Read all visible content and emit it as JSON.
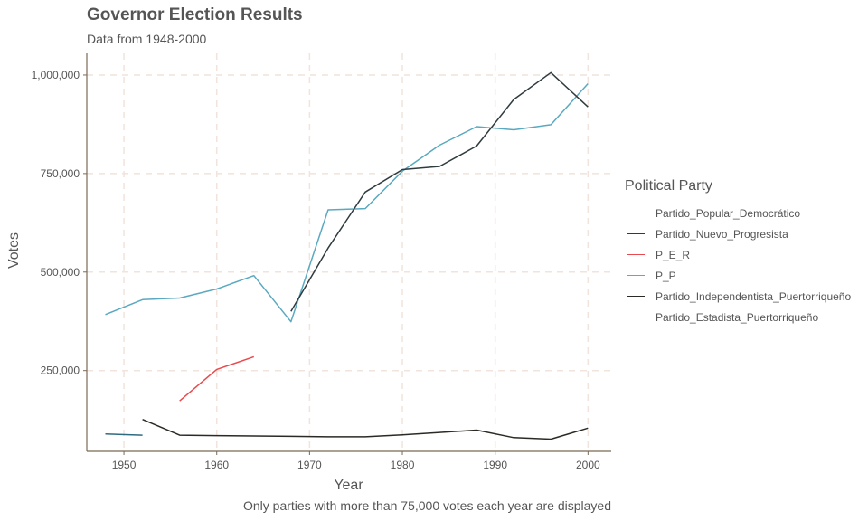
{
  "chart_data": {
    "type": "line",
    "title": "Governor Election Results",
    "subtitle": "Data from 1948-2000",
    "xlabel": "Year",
    "ylabel": "Votes",
    "caption": "Only parties with more than 75,000 votes each year are displayed",
    "xlim": [
      1946,
      2002.5
    ],
    "ylim": [
      45000,
      1055000
    ],
    "x_ticks": [
      1950,
      1960,
      1970,
      1980,
      1990,
      2000
    ],
    "x_tick_labels": [
      "1950",
      "1960",
      "1970",
      "1980",
      "1990",
      "2000"
    ],
    "y_ticks": [
      250000,
      500000,
      750000,
      1000000
    ],
    "y_tick_labels": [
      "250,000",
      "500,000",
      "750,000",
      "1,000,000"
    ],
    "grid": true,
    "legend_title": "Political Party",
    "legend_position": "right",
    "series": [
      {
        "name": "Partido_Popular_Democrático",
        "color": "#5aa9c0",
        "x": [
          1948,
          1952,
          1956,
          1960,
          1964,
          1968,
          1972,
          1976,
          1980,
          1984,
          1988,
          1992,
          1996,
          2000
        ],
        "y": [
          392000,
          430000,
          434000,
          457000,
          491000,
          374000,
          658000,
          661000,
          756000,
          822000,
          869000,
          861000,
          874000,
          978000
        ]
      },
      {
        "name": "Partido_Nuevo_Progresista",
        "color": "#2f3b3e",
        "x": [
          1968,
          1972,
          1976,
          1980,
          1984,
          1988,
          1992,
          1996,
          2000
        ],
        "y": [
          400000,
          561000,
          703000,
          760000,
          768000,
          820000,
          938000,
          1006000,
          919000
        ]
      },
      {
        "name": "P_E_R",
        "color": "#e84a4f",
        "x": [
          1956,
          1960,
          1964
        ],
        "y": [
          173000,
          253000,
          285000
        ]
      },
      {
        "name": "P_P",
        "color": "#c58a5b",
        "x": [],
        "y": []
      },
      {
        "name": "Partido_Independentista_Puertorriqueño",
        "color": "#2b2a24",
        "x": [
          1952,
          1956,
          1960,
          1964,
          1968,
          1972,
          1976,
          1980,
          1984,
          1988,
          1992,
          1996,
          2000
        ],
        "y": [
          126000,
          86000,
          85000,
          84000,
          83000,
          82000,
          82000,
          87000,
          93000,
          99000,
          80000,
          76000,
          104000
        ]
      },
      {
        "name": "Partido_Estadista_Puertorriqueño",
        "color": "#2e6b80",
        "x": [
          1948,
          1952
        ],
        "y": [
          89000,
          86000
        ]
      }
    ]
  }
}
